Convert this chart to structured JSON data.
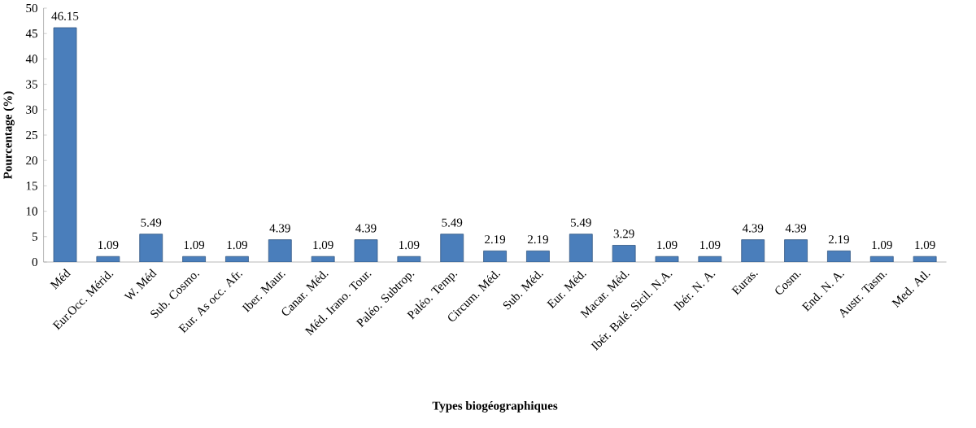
{
  "chart_data": {
    "type": "bar",
    "xlabel": "Types biogéographiques",
    "ylabel": "Pourcentage (%)",
    "categories": [
      "Méd",
      "Eur.Occ. Mérid.",
      "W. Méd",
      "Sub. Cosmo.",
      "Eur. As occ. Afr.",
      "Iber. Maur.",
      "Canar. Méd.",
      "Méd. Irano. Tour.",
      "Paléo. Subtrop.",
      "Paléo. Temp.",
      "Circum. Méd.",
      "Sub. Méd.",
      "Eur. Méd.",
      "Macar. Méd.",
      "Ibér. Balé. Sicil. N.A.",
      "Ibér. N. A.",
      "Euras.",
      "Cosm.",
      "End. N. A.",
      "Austr. Tasm.",
      "Med. Atl."
    ],
    "values": [
      46.15,
      1.09,
      5.49,
      1.09,
      1.09,
      4.39,
      1.09,
      4.39,
      1.09,
      5.49,
      2.19,
      2.19,
      5.49,
      3.29,
      1.09,
      1.09,
      4.39,
      4.39,
      2.19,
      1.09,
      1.09
    ],
    "color": "#4a7ebb",
    "ylim": [
      0,
      50
    ],
    "yticks": [
      0,
      5,
      10,
      15,
      20,
      25,
      30,
      35,
      40,
      45,
      50
    ],
    "data_labels": true
  }
}
